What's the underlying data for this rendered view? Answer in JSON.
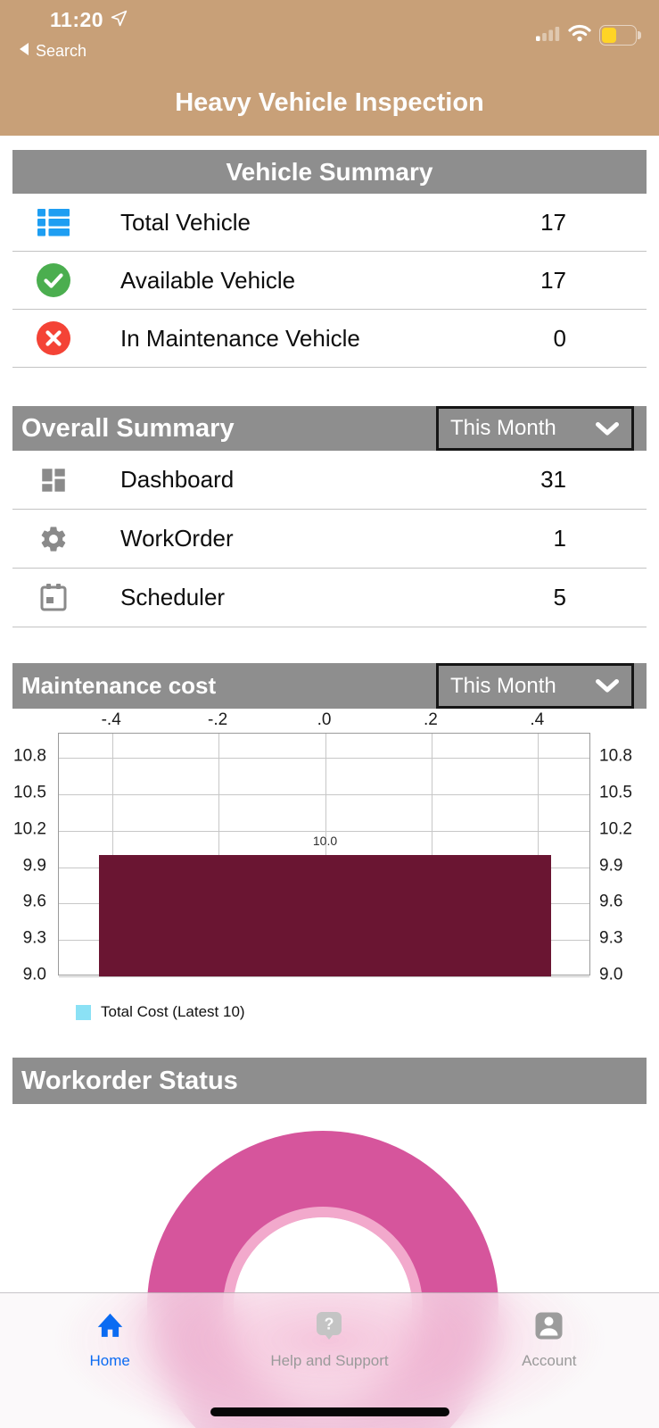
{
  "status_bar": {
    "time": "11:20",
    "back_label": "Search"
  },
  "header": {
    "title": "Heavy Vehicle Inspection"
  },
  "vehicle_summary": {
    "title": "Vehicle Summary",
    "rows": [
      {
        "icon": "list-icon",
        "label": "Total Vehicle",
        "value": "17"
      },
      {
        "icon": "check-circle-icon",
        "label": "Available Vehicle",
        "value": "17"
      },
      {
        "icon": "x-circle-icon",
        "label": "In Maintenance Vehicle",
        "value": "0"
      }
    ]
  },
  "overall_summary": {
    "title": "Overall Summary",
    "filter": {
      "value": "This Month"
    },
    "rows": [
      {
        "icon": "dashboard-icon",
        "label": "Dashboard",
        "value": "31"
      },
      {
        "icon": "gear-icon",
        "label": "WorkOrder",
        "value": "1"
      },
      {
        "icon": "calendar-icon",
        "label": "Scheduler",
        "value": "5"
      }
    ]
  },
  "maintenance_cost": {
    "title": "Maintenance cost",
    "filter": {
      "value": "This Month"
    }
  },
  "workorder_status": {
    "title": "Workorder Status"
  },
  "tab_bar": {
    "tabs": [
      {
        "label": "Home",
        "active": true
      },
      {
        "label": "Help and Support",
        "active": false
      },
      {
        "label": "Account",
        "active": false
      }
    ]
  },
  "colors": {
    "header_bg": "#C8A078",
    "section_bar_bg": "#8E8E8E",
    "bar_fill": "#6A1532",
    "legend_swatch": "#8BE1F5",
    "donut": "#D6559C",
    "donut_inner_ring": "#F2A9CC",
    "active_tab": "#0B6BF2",
    "inactive_tab": "#9A9A9A",
    "battery_fill": "#FFD426",
    "icon_blue": "#1E9EF2",
    "icon_green": "#4BAE4F",
    "icon_red": "#F44336",
    "icon_gray": "#8A8A8A"
  },
  "chart_data": [
    {
      "type": "bar",
      "title": "Maintenance cost",
      "filter": "This Month",
      "xlim": [
        -0.5,
        0.5
      ],
      "ylim": [
        9.0,
        11.0
      ],
      "grid": true,
      "x_ticks": [
        {
          "v": -0.4,
          "label": "-.4"
        },
        {
          "v": -0.2,
          "label": "-.2"
        },
        {
          "v": 0.0,
          "label": ".0"
        },
        {
          "v": 0.2,
          "label": ".2"
        },
        {
          "v": 0.4,
          "label": ".4"
        }
      ],
      "y_ticks": [
        {
          "v": 10.8,
          "label": "10.8"
        },
        {
          "v": 10.5,
          "label": "10.5"
        },
        {
          "v": 10.2,
          "label": "10.2"
        },
        {
          "v": 9.9,
          "label": "9.9"
        },
        {
          "v": 9.6,
          "label": "9.6"
        },
        {
          "v": 9.3,
          "label": "9.3"
        },
        {
          "v": 9.0,
          "label": "9.0"
        }
      ],
      "bars": [
        {
          "x0": -0.425,
          "x1": 0.425,
          "base": 9.0,
          "value": 10.0,
          "label": "10.0",
          "color": "#6A1532"
        }
      ],
      "legend": [
        {
          "label": "Total Cost (Latest 10)",
          "color": "#8BE1F5"
        }
      ],
      "legend_position": "bottom-left"
    },
    {
      "type": "donut",
      "title": "Workorder Status",
      "segments": [
        {
          "label": "",
          "fraction": 1.0,
          "color": "#D6559C"
        }
      ],
      "inner_ring_color": "#F2A9CC"
    }
  ]
}
